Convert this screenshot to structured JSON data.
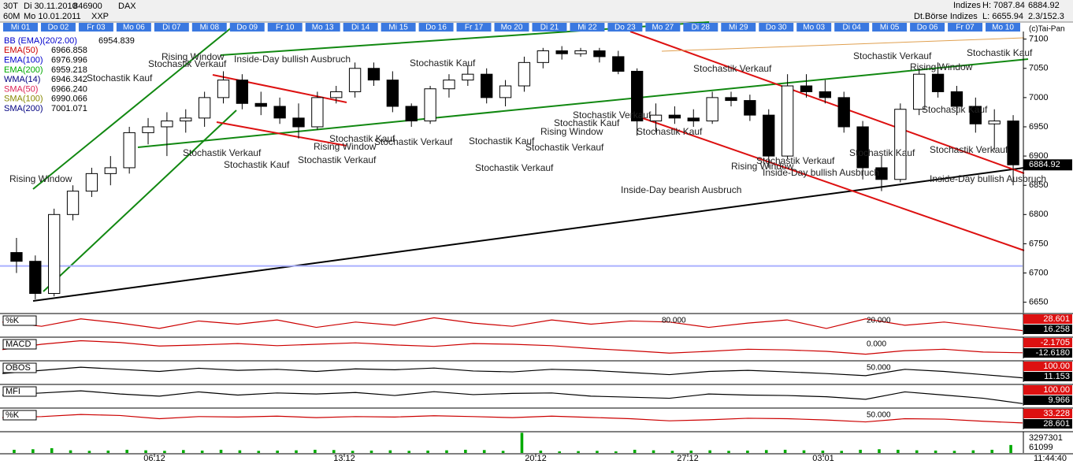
{
  "header": {
    "period_top": "30T",
    "period_bottom": "60M",
    "date_from": "Di 30.11.2010",
    "date_to": "Mo 10.01.2011",
    "wkn": "846900",
    "exchange": "XXP",
    "name": "DAX",
    "group": "Indizes",
    "group_full": "Dt.Börse Indizes",
    "high": "H: 7087.84",
    "low": "L: 6655.94",
    "last": "6884.92",
    "change": "2.3/152.3",
    "copyright": "(c)Tai-Pan"
  },
  "days": [
    "Mi 01",
    "Do 02",
    "Fr 03",
    "Mo 06",
    "Di 07",
    "Mi 08",
    "Do 09",
    "Fr 10",
    "Mo 13",
    "Di 14",
    "Mi 15",
    "Do 16",
    "Fr 17",
    "Mo 20",
    "Di 21",
    "Mi 22",
    "Do 23",
    "Mo 27",
    "Di 28",
    "Mi 29",
    "Do 30",
    "Mo 03",
    "Di 04",
    "Mi 05",
    "Do 06",
    "Fr 07",
    "Mo 10"
  ],
  "x_labels": [
    "06.12",
    "13.12",
    "20.12",
    "27.12",
    "03.01"
  ],
  "time": "11:44:40",
  "chart_data": [
    {
      "type": "candlestick",
      "open": [
        6735,
        6720,
        6665,
        6800,
        6840,
        6870,
        6880,
        6940,
        6950,
        6960,
        6965,
        7000,
        7030,
        6990,
        6985,
        6965,
        6950,
        7000,
        7010,
        7050,
        7030,
        6985,
        6960,
        7015,
        7030,
        7040,
        7000,
        7020,
        7060,
        7080,
        7075,
        7080,
        7070,
        7045,
        6960,
        6970,
        6965,
        6960,
        7000,
        6995,
        6970,
        6900,
        7020,
        7010,
        7000,
        6950,
        6880,
        6860,
        6980,
        7040,
        7010,
        6985,
        6955,
        6960
      ],
      "high": [
        6760,
        6730,
        6810,
        6850,
        6880,
        6900,
        6950,
        6965,
        6975,
        6980,
        7010,
        7045,
        7040,
        7010,
        7000,
        6990,
        7010,
        7020,
        7060,
        7060,
        7045,
        6990,
        7020,
        7040,
        7055,
        7050,
        7030,
        7070,
        7085,
        7088,
        7085,
        7085,
        7080,
        7050,
        6990,
        6985,
        6980,
        7010,
        7010,
        7005,
        6980,
        7040,
        7040,
        7030,
        7010,
        6960,
        6900,
        6990,
        7050,
        7060,
        7020,
        7000,
        6980,
        6970
      ],
      "low": [
        6700,
        6655,
        6660,
        6790,
        6830,
        6850,
        6870,
        6920,
        6900,
        6940,
        6950,
        6990,
        6980,
        6970,
        6955,
        6930,
        6945,
        6990,
        7000,
        7020,
        6975,
        6950,
        6955,
        7000,
        7020,
        6990,
        6985,
        7010,
        7050,
        7065,
        7070,
        7060,
        7040,
        6935,
        6940,
        6955,
        6950,
        6955,
        6985,
        6960,
        6880,
        6895,
        7000,
        6990,
        6940,
        6860,
        6840,
        6855,
        6970,
        7000,
        6970,
        6940,
        6910,
        6850
      ],
      "close": [
        6720,
        6665,
        6800,
        6840,
        6870,
        6880,
        6940,
        6950,
        6960,
        6965,
        7000,
        7030,
        6990,
        6985,
        6965,
        6950,
        7000,
        7010,
        7050,
        7030,
        6985,
        6960,
        7015,
        7030,
        7040,
        7000,
        7020,
        7060,
        7080,
        7075,
        7080,
        7070,
        7045,
        6960,
        6970,
        6965,
        6960,
        7000,
        6995,
        6970,
        6900,
        7020,
        7010,
        7000,
        6950,
        6880,
        6860,
        6980,
        7040,
        7010,
        6985,
        6955,
        6960,
        6885
      ],
      "ylim": [
        6632,
        7113
      ],
      "yticks": [
        6650,
        6700,
        6750,
        6800,
        6850,
        6900,
        6950,
        7000,
        7050,
        7100
      ],
      "hline": 6712,
      "last_price": 6884.92,
      "legend": [
        {
          "name": "BB (EMA)(20/2.00)",
          "value": "6954.839",
          "color": "#0000cc"
        },
        {
          "name": "EMA(50)",
          "value": "6966.858",
          "color": "#cc0000"
        },
        {
          "name": "EMA(100)",
          "value": "6976.996",
          "color": "#0000cc"
        },
        {
          "name": "EMA(200)",
          "value": "6959.218",
          "color": "#00aa00"
        },
        {
          "name": "WMA(14)",
          "value": "6946.342",
          "color": "#000080"
        },
        {
          "name": "SMA(50)",
          "value": "6966.240",
          "color": "#dd2255"
        },
        {
          "name": "SMA(100)",
          "value": "6990.066",
          "color": "#888800"
        },
        {
          "name": "SMA(200)",
          "value": "7001.071",
          "color": "#000080"
        }
      ],
      "annotations": [
        "Rising Window",
        "Stochastik Verkauf",
        "Stochastik Kauf",
        "Rising Window",
        "Inside-Day bullish Ausbruch",
        "Stochastik Verkauf",
        "Stochastik Kauf",
        "Stochastik Verkauf",
        "Rising Window",
        "Stochastik Kauf",
        "Stochastik Verkauf",
        "Stochastik Kauf",
        "Stochastik Kauf",
        "Stochastik Verkauf",
        "Stochastik Verkauf",
        "Rising Window",
        "Stochastik Kauf",
        "Stochastik Verkauf",
        "Stochastik Kauf",
        "Stochastik Verkauf",
        "Stochastik Verkauf",
        "Rising Window",
        "Inside-Day bullish Ausbruch",
        "Inside-Day bearish Ausbruch",
        "Stochastik Verkauf",
        "Stochastik Kauf",
        "Rising Window",
        "Stochastik Verkauf",
        "Stochastik Kauf",
        "Stochastik Kauf",
        "Inside-Day bullish Ausbruch"
      ]
    },
    {
      "type": "line",
      "title": "%K",
      "color": "#cc0000",
      "ylim": [
        0,
        100
      ],
      "values": [
        60,
        40,
        75,
        55,
        30,
        65,
        50,
        70,
        35,
        60,
        45,
        80,
        55,
        40,
        70,
        50,
        65,
        60,
        35,
        55,
        70,
        30,
        75,
        45,
        60,
        40,
        20
      ],
      "levels": [
        "80.000",
        "20.000"
      ],
      "right_labels": [
        "28.601",
        "16.258"
      ]
    },
    {
      "type": "line",
      "title": "MACD",
      "color": "#cc0000",
      "ylim": [
        -30,
        30
      ],
      "values": [
        -5,
        10,
        20,
        15,
        5,
        8,
        12,
        6,
        10,
        14,
        8,
        4,
        12,
        10,
        6,
        -2,
        -8,
        -15,
        -10,
        -4,
        -6,
        -10,
        -18,
        -8,
        -4,
        -12,
        -14
      ],
      "levels": [
        "0.000"
      ],
      "right_labels": [
        "-2.1705",
        "-12.6180"
      ]
    },
    {
      "type": "line",
      "title": "OBOS",
      "color": "#000000",
      "ylim": [
        0,
        100
      ],
      "values": [
        40,
        55,
        70,
        60,
        50,
        65,
        55,
        60,
        50,
        62,
        58,
        66,
        52,
        48,
        60,
        55,
        45,
        35,
        50,
        55,
        48,
        40,
        30,
        60,
        50,
        35,
        20
      ],
      "levels": [
        "50.000"
      ],
      "right_labels": [
        "100.00",
        "11.153"
      ]
    },
    {
      "type": "line",
      "title": "MFI",
      "color": "#000000",
      "ylim": [
        0,
        100
      ],
      "values": [
        50,
        60,
        70,
        55,
        45,
        65,
        50,
        60,
        55,
        62,
        48,
        66,
        52,
        58,
        60,
        45,
        40,
        35,
        55,
        50,
        48,
        42,
        30,
        65,
        50,
        35,
        10
      ],
      "levels": [],
      "right_labels": [
        "100.00",
        "9.966"
      ]
    },
    {
      "type": "line",
      "title": "%K",
      "color": "#cc0000",
      "ylim": [
        0,
        100
      ],
      "values": [
        55,
        60,
        70,
        65,
        50,
        60,
        58,
        62,
        55,
        60,
        58,
        64,
        60,
        55,
        62,
        56,
        50,
        40,
        45,
        52,
        50,
        44,
        35,
        50,
        48,
        38,
        30
      ],
      "levels": [
        "50.000"
      ],
      "right_labels": [
        "33.228",
        "28.601"
      ]
    },
    {
      "type": "bar",
      "color": "#00aa00",
      "ylim": [
        0,
        400000
      ],
      "values": [
        60000,
        70000,
        90000,
        50000,
        40000,
        45000,
        60000,
        50000,
        40000,
        55000,
        45000,
        60000,
        50000,
        40000,
        45000,
        50000,
        60000,
        55000,
        40000,
        45000,
        50000,
        40000,
        45000,
        50000,
        60000,
        55000,
        40000,
        380000,
        45000,
        30000,
        35000,
        40000,
        30000,
        60000,
        50000,
        40000,
        45000,
        50000,
        40000,
        45000,
        55000,
        60000,
        50000,
        45000,
        40000,
        60000,
        70000,
        60000,
        50000,
        45000,
        40000,
        50000,
        60000,
        150000
      ],
      "right_labels": [
        "3297301",
        "61099"
      ]
    }
  ]
}
